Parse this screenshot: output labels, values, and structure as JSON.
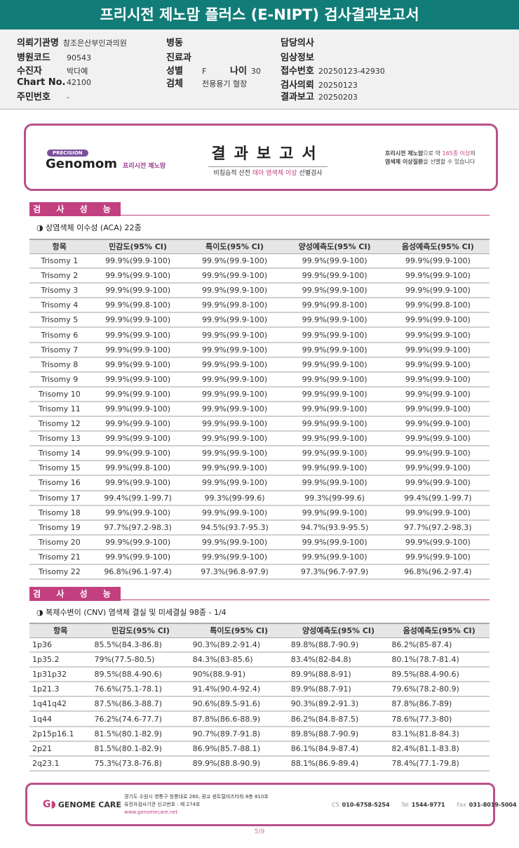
{
  "title": "프리시전 제노맘 플러스 (E-NIPT) 검사결과보고서",
  "info": {
    "hospital_label": "의뢰기관명",
    "hospital": "참조은산부인과의원",
    "code_label": "병원코드",
    "code": "90543",
    "patient_label": "수진자",
    "patient": "박다예",
    "chart_label": "Chart No.",
    "chart": "42100",
    "rrn_label": "주민번호",
    "rrn": "-",
    "ward_label": "병동",
    "dept_label": "진료과",
    "sex_label": "성별",
    "sex": "F",
    "age_label": "나이",
    "age": "30",
    "specimen_label": "검체",
    "specimen": "전용용기 혈장",
    "doctor_label": "담당의사",
    "clinical_label": "임상정보",
    "receipt_label": "접수번호",
    "receipt": "20250123-42930",
    "request_label": "검사의뢰",
    "request": "20250123",
    "report_label": "결과보고",
    "report": "20250203"
  },
  "banner": {
    "precision": "PRECISION",
    "brand": "Genomom",
    "brand_kr": "프리시전 제노맘",
    "title": "결과보고서",
    "sub_1": "비침습적 산전 ",
    "sub_2": "태아 염색체 이상",
    "sub_3": " 선별검사",
    "side_1a": "프리시전 제노맘",
    "side_1b": "으로 약 ",
    "side_1c": "165종 이상",
    "side_1d": "의",
    "side_2a": "염색체 이상질환",
    "side_2b": "을 선별할 수 있습니다"
  },
  "section1": {
    "label": "검 사 성 능",
    "subtitle": "◑ 상염색체 이수성 (ACA) 22종",
    "headers": [
      "항목",
      "민감도(95% CI)",
      "특이도(95% CI)",
      "양성예측도(95% CI)",
      "음성예측도(95% CI)"
    ],
    "rows": [
      [
        "Trisomy 1",
        "99.9%(99.9-100)",
        "99.9%(99.9-100)",
        "99.9%(99.9-100)",
        "99.9%(99.9-100)"
      ],
      [
        "Trisomy 2",
        "99.9%(99.9-100)",
        "99.9%(99.9-100)",
        "99.9%(99.9-100)",
        "99.9%(99.9-100)"
      ],
      [
        "Trisomy 3",
        "99.9%(99.9-100)",
        "99.9%(99.9-100)",
        "99.9%(99.9-100)",
        "99.9%(99.9-100)"
      ],
      [
        "Trisomy 4",
        "99.9%(99.8-100)",
        "99.9%(99.8-100)",
        "99.9%(99.8-100)",
        "99.9%(99.8-100)"
      ],
      [
        "Trisomy 5",
        "99.9%(99.9-100)",
        "99.9%(99.9-100)",
        "99.9%(99.9-100)",
        "99.9%(99.9-100)"
      ],
      [
        "Trisomy 6",
        "99.9%(99.9-100)",
        "99.9%(99.9-100)",
        "99.9%(99.9-100)",
        "99.9%(99.9-100)"
      ],
      [
        "Trisomy 7",
        "99.9%(99.9-100)",
        "99.9%(99.9-100)",
        "99.9%(99.9-100)",
        "99.9%(99.9-100)"
      ],
      [
        "Trisomy 8",
        "99.9%(99.9-100)",
        "99.9%(99.9-100)",
        "99.9%(99.9-100)",
        "99.9%(99.9-100)"
      ],
      [
        "Trisomy 9",
        "99.9%(99.9-100)",
        "99.9%(99.9-100)",
        "99.9%(99.9-100)",
        "99.9%(99.9-100)"
      ],
      [
        "Trisomy 10",
        "99.9%(99.9-100)",
        "99.9%(99.9-100)",
        "99.9%(99.9-100)",
        "99.9%(99.9-100)"
      ],
      [
        "Trisomy 11",
        "99.9%(99.9-100)",
        "99.9%(99.9-100)",
        "99.9%(99.9-100)",
        "99.9%(99.9-100)"
      ],
      [
        "Trisomy 12",
        "99.9%(99.9-100)",
        "99.9%(99.9-100)",
        "99.9%(99.9-100)",
        "99.9%(99.9-100)"
      ],
      [
        "Trisomy 13",
        "99.9%(99.9-100)",
        "99.9%(99.9-100)",
        "99.9%(99.9-100)",
        "99.9%(99.9-100)"
      ],
      [
        "Trisomy 14",
        "99.9%(99.9-100)",
        "99.9%(99.9-100)",
        "99.9%(99.9-100)",
        "99.9%(99.9-100)"
      ],
      [
        "Trisomy 15",
        "99.9%(99.8-100)",
        "99.9%(99.9-100)",
        "99.9%(99.9-100)",
        "99.9%(99.9-100)"
      ],
      [
        "Trisomy 16",
        "99.9%(99.9-100)",
        "99.9%(99.9-100)",
        "99.9%(99.9-100)",
        "99.9%(99.9-100)"
      ],
      [
        "Trisomy 17",
        "99.4%(99.1-99.7)",
        "99.3%(99-99.6)",
        "99.3%(99-99.6)",
        "99.4%(99.1-99.7)"
      ],
      [
        "Trisomy 18",
        "99.9%(99.9-100)",
        "99.9%(99.9-100)",
        "99.9%(99.9-100)",
        "99.9%(99.9-100)"
      ],
      [
        "Trisomy 19",
        "97.7%(97.2-98.3)",
        "94.5%(93.7-95.3)",
        "94.7%(93.9-95.5)",
        "97.7%(97.2-98.3)"
      ],
      [
        "Trisomy 20",
        "99.9%(99.9-100)",
        "99.9%(99.9-100)",
        "99.9%(99.9-100)",
        "99.9%(99.9-100)"
      ],
      [
        "Trisomy 21",
        "99.9%(99.9-100)",
        "99.9%(99.9-100)",
        "99.9%(99.9-100)",
        "99.9%(99.9-100)"
      ],
      [
        "Trisomy 22",
        "96.8%(96.1-97.4)",
        "97.3%(96.8-97.9)",
        "97.3%(96.7-97.9)",
        "96.8%(96.2-97.4)"
      ]
    ]
  },
  "section2": {
    "label": "검 사 성 능",
    "subtitle": "◑ 복제수변이 (CNV) 염색체 결실 및 미세결실 98종 - 1/4",
    "headers": [
      "항목",
      "민감도(95% CI)",
      "특이도(95% CI)",
      "양성예측도(95% CI)",
      "음성예측도(95% CI)"
    ],
    "rows": [
      [
        "1p36",
        "85.5%(84.3-86.8)",
        "90.3%(89.2-91.4)",
        "89.8%(88.7-90.9)",
        "86.2%(85-87.4)"
      ],
      [
        "1p35.2",
        "79%(77.5-80.5)",
        "84.3%(83-85.6)",
        "83.4%(82-84.8)",
        "80.1%(78.7-81.4)"
      ],
      [
        "1p31p32",
        "89.5%(88.4-90.6)",
        "90%(88.9-91)",
        "89.9%(88.8-91)",
        "89.5%(88.4-90.6)"
      ],
      [
        "1p21.3",
        "76.6%(75.1-78.1)",
        "91.4%(90.4-92.4)",
        "89.9%(88.7-91)",
        "79.6%(78.2-80.9)"
      ],
      [
        "1q41q42",
        "87.5%(86.3-88.7)",
        "90.6%(89.5-91.6)",
        "90.3%(89.2-91.3)",
        "87.8%(86.7-89)"
      ],
      [
        "1q44",
        "76.2%(74.6-77.7)",
        "87.8%(86.6-88.9)",
        "86.2%(84.8-87.5)",
        "78.6%(77.3-80)"
      ],
      [
        "2p15p16.1",
        "81.5%(80.1-82.9)",
        "90.7%(89.7-91.8)",
        "89.8%(88.7-90.9)",
        "83.1%(81.8-84.3)"
      ],
      [
        "2p21",
        "81.5%(80.1-82.9)",
        "86.9%(85.7-88.1)",
        "86.1%(84.9-87.4)",
        "82.4%(81.1-83.8)"
      ],
      [
        "2q23.1",
        "75.3%(73.8-76.8)",
        "89.9%(88.8-90.9)",
        "88.1%(86.9-89.4)",
        "78.4%(77.1-79.8)"
      ]
    ]
  },
  "footer": {
    "logo": "GENOME CARE",
    "addr1": "경기도 수원시 영통구 창룡대로 260, 광교 센트럴비즈타워 8층 810호",
    "addr2": "유전자검사기관 신고번호 : 제 274호",
    "web": "www.genomecare.net",
    "cs_label": "CS",
    "cs": "010-6758-5254",
    "tel_label": "Tel",
    "tel": "1544-9771",
    "fax_label": "Fax",
    "fax": "031-8019-5004"
  },
  "page": "5/9",
  "colors": {
    "title_bar": "#127d78",
    "accent": "#c2407f"
  }
}
